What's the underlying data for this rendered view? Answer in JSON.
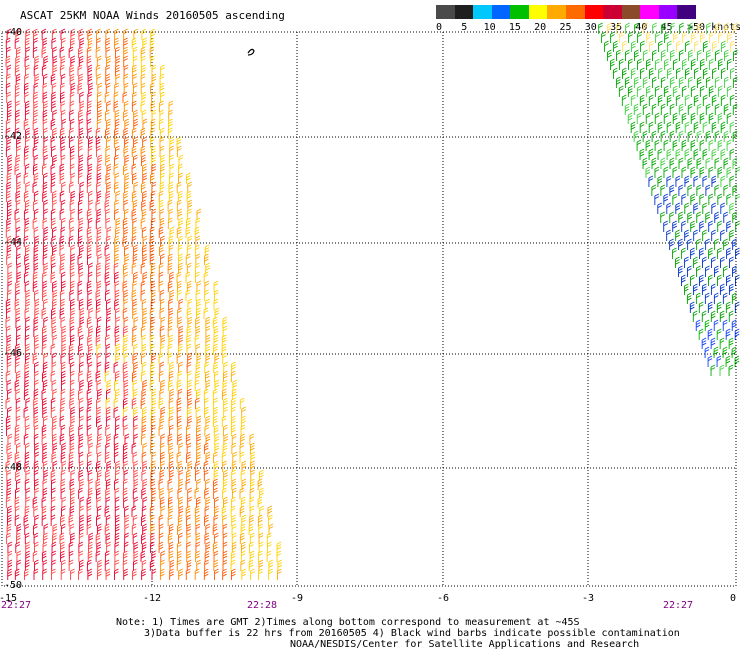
{
  "title": "ASCAT 25KM NOAA Winds 20160505 ascending",
  "legend": {
    "colors": [
      "#4a4a4a",
      "#1f1f1f",
      "#00c8ff",
      "#0066ff",
      "#00c000",
      "#ffff00",
      "#ffaa00",
      "#ff6a00",
      "#ff0000",
      "#cc0033",
      "#8b4a2a",
      "#ff00ff",
      "#9900ff",
      "#400080"
    ],
    "labels": [
      "0",
      "5",
      "10",
      "15",
      "20",
      "25",
      "30",
      "35",
      "40",
      "45"
    ],
    "unit": ">50 knots"
  },
  "axes": {
    "x_labels": [
      "-15",
      "-12",
      "-9",
      "-6",
      "-3",
      "0"
    ],
    "y_labels": [
      "-40",
      "-42",
      "-44",
      "-46",
      "-48",
      "-50"
    ]
  },
  "time_labels": [
    "22:27",
    "22:28",
    "22:27"
  ],
  "notes": [
    "Note: 1) Times are GMT 2)Times along bottom correspond to measurement at ~45S",
    "3)Data buffer is 22 hrs from 20160505 4) Black wind barbs indicate possible contamination",
    "NOAA/NESDIS/Center for Satellite Applications and Research"
  ]
}
